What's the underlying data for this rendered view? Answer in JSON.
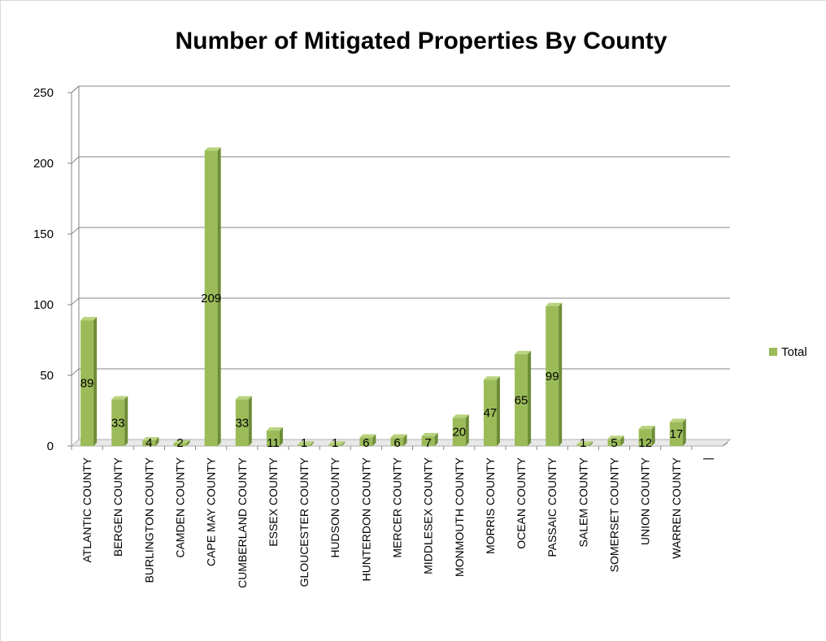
{
  "chart_data": {
    "type": "bar",
    "title": "Number of Mitigated Properties By County",
    "categories": [
      "ATLANTIC COUNTY",
      "BERGEN COUNTY",
      "BURLINGTON COUNTY",
      "CAMDEN COUNTY",
      "CAPE MAY COUNTY",
      "CUMBERLAND COUNTY",
      "ESSEX COUNTY",
      "GLOUCESTER COUNTY",
      "HUDSON COUNTY",
      "HUNTERDON COUNTY",
      "MERCER COUNTY",
      "MIDDLESEX COUNTY",
      "MONMOUTH COUNTY",
      "MORRIS COUNTY",
      "OCEAN COUNTY",
      "PASSAIC COUNTY",
      "SALEM COUNTY",
      "SOMERSET COUNTY",
      "UNION COUNTY",
      "WARREN COUNTY",
      "|"
    ],
    "series": [
      {
        "name": "Total",
        "values": [
          89,
          33,
          4,
          2,
          209,
          33,
          11,
          1,
          1,
          6,
          6,
          7,
          20,
          47,
          65,
          99,
          1,
          5,
          12,
          17,
          null
        ]
      }
    ],
    "y_ticks": [
      "0",
      "50",
      "100",
      "150",
      "200",
      "250"
    ],
    "ylim": [
      0,
      250
    ],
    "grid": true,
    "legend_position": "right",
    "colors": {
      "bar_front": "#9bbb59",
      "bar_side": "#6e8c37",
      "bar_top": "#b8d27e",
      "grid": "#868686",
      "floor": "#b0b0b0"
    }
  }
}
